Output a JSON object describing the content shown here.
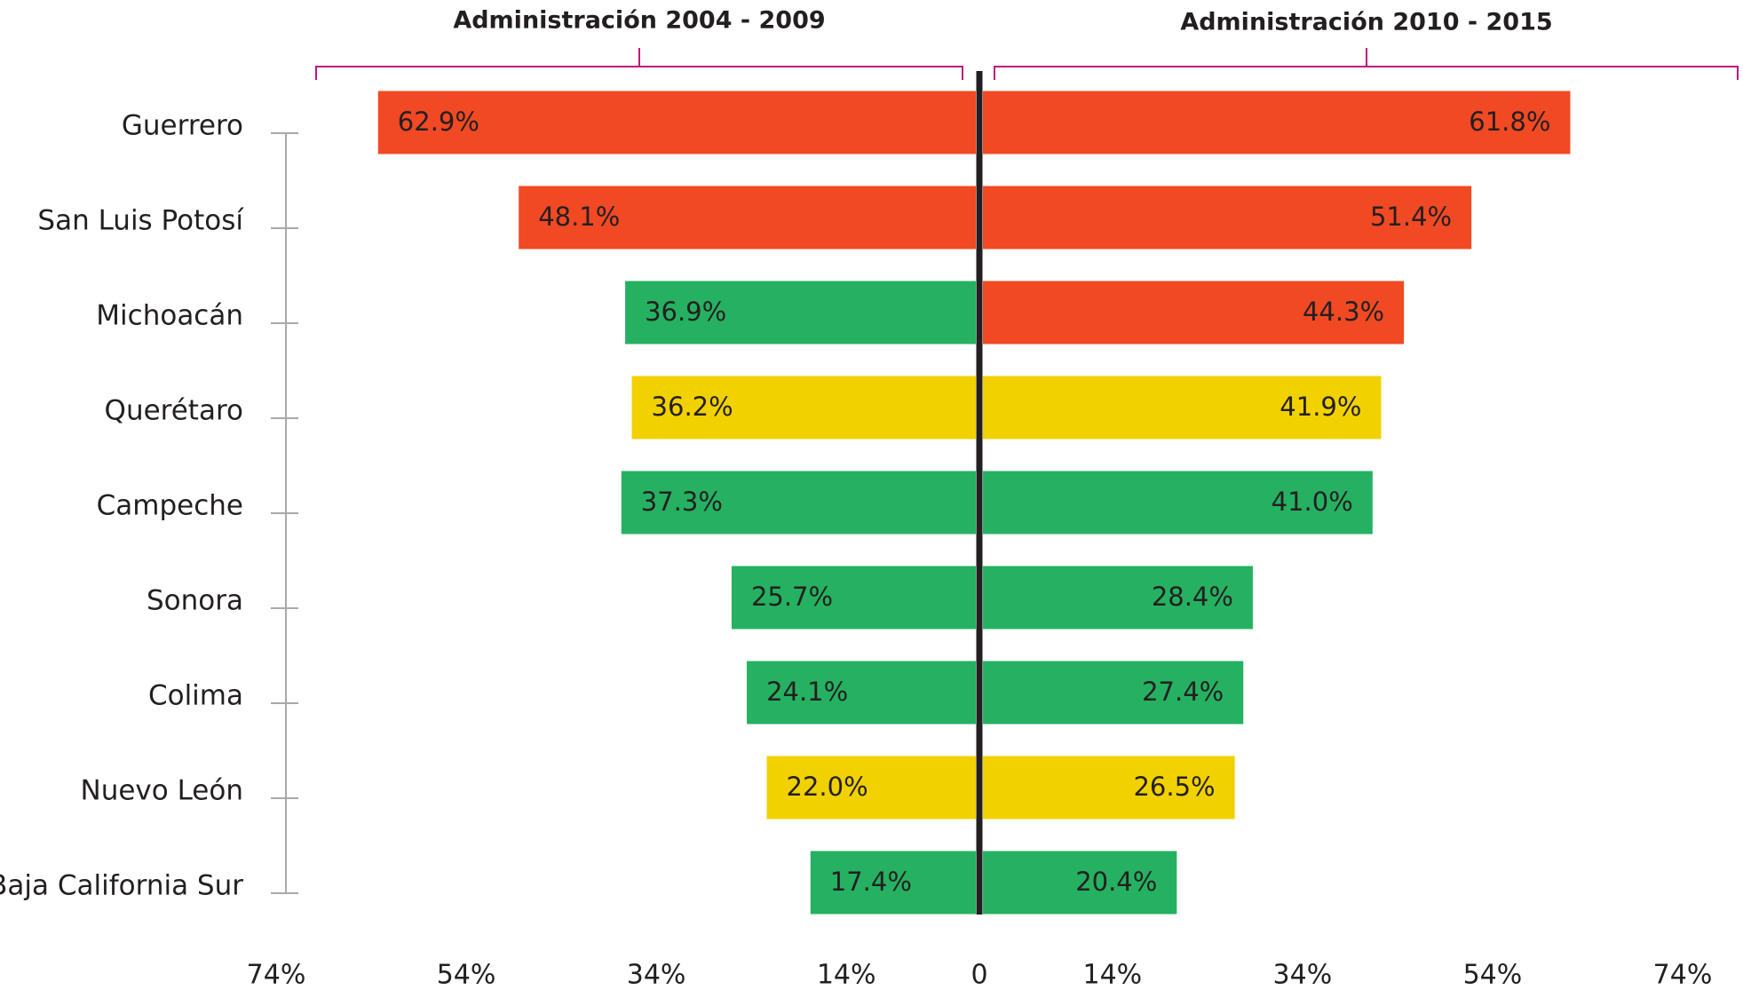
{
  "chart_data": {
    "type": "butterfly",
    "categories": [
      "Guerrero",
      "San Luis Potosí",
      "Michoacán",
      "Querétaro",
      "Campeche",
      "Sonora",
      "Colima",
      "Nuevo León",
      "Baja California Sur"
    ],
    "series": [
      {
        "name": "Administración 2004 - 2009",
        "values": [
          62.9,
          48.1,
          36.9,
          36.2,
          37.3,
          25.7,
          24.1,
          22.0,
          17.4
        ],
        "value_labels": [
          "62.9%",
          "48.1%",
          "36.9%",
          "36.2%",
          "37.3%",
          "25.7%",
          "24.1%",
          "22.0%",
          "17.4%"
        ],
        "colors": [
          "#f04923",
          "#f04923",
          "#25b161",
          "#f2d100",
          "#25b161",
          "#25b161",
          "#25b161",
          "#f2d100",
          "#25b161"
        ]
      },
      {
        "name": "Administración 2010 - 2015",
        "values": [
          61.8,
          51.4,
          44.3,
          41.9,
          41.0,
          28.4,
          27.4,
          26.5,
          20.4
        ],
        "value_labels": [
          "61.8%",
          "51.4%",
          "44.3%",
          "41.9%",
          "41.0%",
          "28.4%",
          "27.4%",
          "26.5%",
          "20.4%"
        ],
        "colors": [
          "#f04923",
          "#f04923",
          "#f04923",
          "#f2d100",
          "#25b161",
          "#25b161",
          "#25b161",
          "#f2d100",
          "#25b161"
        ]
      }
    ],
    "xlim": [
      0,
      74
    ],
    "xticks": [
      0,
      {
        "value": 14,
        "label": "14%"
      },
      {
        "value": 34,
        "label": "34%"
      },
      {
        "value": 54,
        "label": "54%"
      },
      {
        "value": 74,
        "label": "74%"
      }
    ]
  }
}
